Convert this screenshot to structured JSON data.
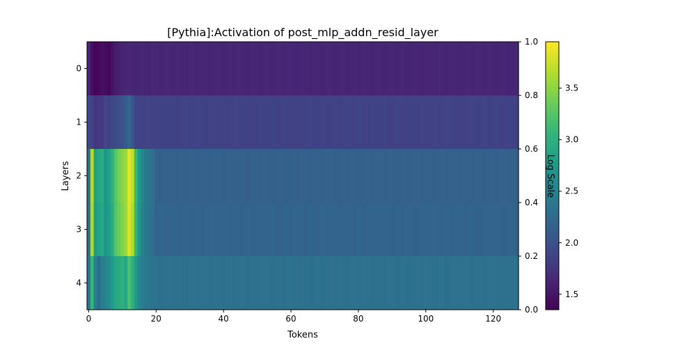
{
  "chart_data": {
    "type": "heatmap",
    "title": "[Pythia]:Activation of post_mlp_addn_resid_layer",
    "xlabel": "Tokens",
    "ylabel": "Layers",
    "x_ticks": [
      0,
      20,
      40,
      60,
      80,
      100,
      120
    ],
    "y_categories": [
      "0",
      "1",
      "2",
      "3",
      "4"
    ],
    "xlim": [
      -0.5,
      127.5
    ],
    "n_tokens": 128,
    "grid": false,
    "colormap": "viridis",
    "colorbar": {
      "label": "Log Scale",
      "range": [
        1.35,
        3.95
      ],
      "ticks": [
        1.5,
        2.0,
        2.5,
        3.0,
        3.5
      ],
      "right_axis_ticks": [
        "0.0",
        "0.2",
        "0.4",
        "0.6",
        "0.8",
        "1.0"
      ]
    },
    "rows": [
      {
        "layer": "0",
        "base": 1.62,
        "spikes": {
          "1": 1.45,
          "2": 1.38,
          "3": 1.42,
          "4": 1.46,
          "5": 1.44,
          "6": 1.4,
          "7": 1.48,
          "8": 1.55,
          "9": 1.58
        }
      },
      {
        "layer": "1",
        "base": 1.86,
        "spikes": {
          "0": 1.95,
          "1": 1.88,
          "2": 1.74,
          "3": 1.8,
          "4": 1.78,
          "5": 1.9,
          "6": 1.85,
          "7": 1.9,
          "8": 1.95,
          "9": 1.98,
          "10": 2.02,
          "11": 2.1,
          "12": 2.2,
          "13": 2.05
        }
      },
      {
        "layer": "2",
        "base": 2.15,
        "spikes": {
          "0": 2.3,
          "1": 3.65,
          "2": 2.8,
          "3": 2.9,
          "4": 2.95,
          "5": 2.7,
          "6": 2.85,
          "7": 3.0,
          "8": 3.25,
          "9": 3.4,
          "10": 3.5,
          "11": 3.55,
          "12": 3.85,
          "13": 3.7,
          "14": 3.1,
          "15": 2.75,
          "16": 2.55,
          "17": 2.4,
          "18": 2.35,
          "19": 2.3
        }
      },
      {
        "layer": "3",
        "base": 2.18,
        "spikes": {
          "0": 2.3,
          "1": 3.6,
          "2": 2.75,
          "3": 2.85,
          "4": 2.9,
          "5": 2.7,
          "6": 2.8,
          "7": 2.95,
          "8": 3.25,
          "9": 3.35,
          "10": 3.45,
          "11": 3.55,
          "12": 3.82,
          "13": 3.65,
          "14": 3.05,
          "15": 2.7,
          "16": 2.5,
          "17": 2.4,
          "18": 2.35,
          "19": 2.3
        }
      },
      {
        "layer": "4",
        "base": 2.32,
        "spikes": {
          "0": 2.35,
          "1": 3.05,
          "2": 2.45,
          "3": 2.25,
          "4": 2.5,
          "5": 2.55,
          "6": 2.6,
          "7": 2.75,
          "8": 2.9,
          "9": 2.95,
          "10": 3.0,
          "11": 2.9,
          "12": 3.2,
          "13": 3.0,
          "14": 2.75,
          "15": 2.55,
          "16": 2.45,
          "17": 2.4,
          "18": 2.38
        }
      }
    ]
  }
}
